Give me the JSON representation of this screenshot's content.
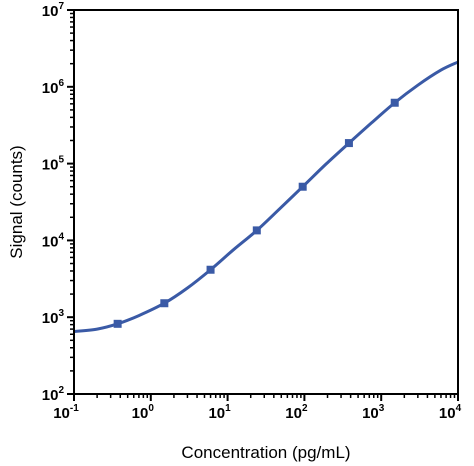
{
  "chart_data": {
    "type": "line",
    "xlabel": "Concentration (pg/mL)",
    "ylabel": "Signal (counts)",
    "x_scale": "log",
    "y_scale": "log",
    "xlim": [
      0.1,
      10000
    ],
    "ylim": [
      100,
      10000000
    ],
    "x_ticks": [
      {
        "value": 0.1,
        "base": "10",
        "exp": "-1"
      },
      {
        "value": 1,
        "base": "10",
        "exp": "0"
      },
      {
        "value": 10,
        "base": "10",
        "exp": "1"
      },
      {
        "value": 100,
        "base": "10",
        "exp": "2"
      },
      {
        "value": 1000,
        "base": "10",
        "exp": "3"
      },
      {
        "value": 10000,
        "base": "10",
        "exp": "4"
      }
    ],
    "y_ticks": [
      {
        "value": 100,
        "base": "10",
        "exp": "2"
      },
      {
        "value": 1000,
        "base": "10",
        "exp": "3"
      },
      {
        "value": 10000,
        "base": "10",
        "exp": "4"
      },
      {
        "value": 100000,
        "base": "10",
        "exp": "5"
      },
      {
        "value": 1000000,
        "base": "10",
        "exp": "6"
      },
      {
        "value": 10000000,
        "base": "10",
        "exp": "7"
      }
    ],
    "grid": false,
    "legend": "none",
    "series": [
      {
        "markers": "square",
        "color": "#3a5aa6",
        "points": [
          {
            "x": 0.37,
            "y": 820
          },
          {
            "x": 1.5,
            "y": 1520
          },
          {
            "x": 6.0,
            "y": 4150
          },
          {
            "x": 24,
            "y": 13500
          },
          {
            "x": 95,
            "y": 50000
          },
          {
            "x": 380,
            "y": 185000
          },
          {
            "x": 1500,
            "y": 620000
          }
        ],
        "fit_curve": [
          {
            "x": 0.1,
            "y": 650
          },
          {
            "x": 0.2,
            "y": 700
          },
          {
            "x": 0.37,
            "y": 820
          },
          {
            "x": 0.7,
            "y": 1050
          },
          {
            "x": 1.5,
            "y": 1520
          },
          {
            "x": 3.0,
            "y": 2400
          },
          {
            "x": 6.0,
            "y": 4150
          },
          {
            "x": 12,
            "y": 7600
          },
          {
            "x": 24,
            "y": 13500
          },
          {
            "x": 48,
            "y": 26000
          },
          {
            "x": 95,
            "y": 50000
          },
          {
            "x": 190,
            "y": 98000
          },
          {
            "x": 380,
            "y": 185000
          },
          {
            "x": 750,
            "y": 340000
          },
          {
            "x": 1500,
            "y": 620000
          },
          {
            "x": 3000,
            "y": 1050000
          },
          {
            "x": 6000,
            "y": 1650000
          },
          {
            "x": 10000,
            "y": 2100000
          }
        ]
      }
    ]
  }
}
